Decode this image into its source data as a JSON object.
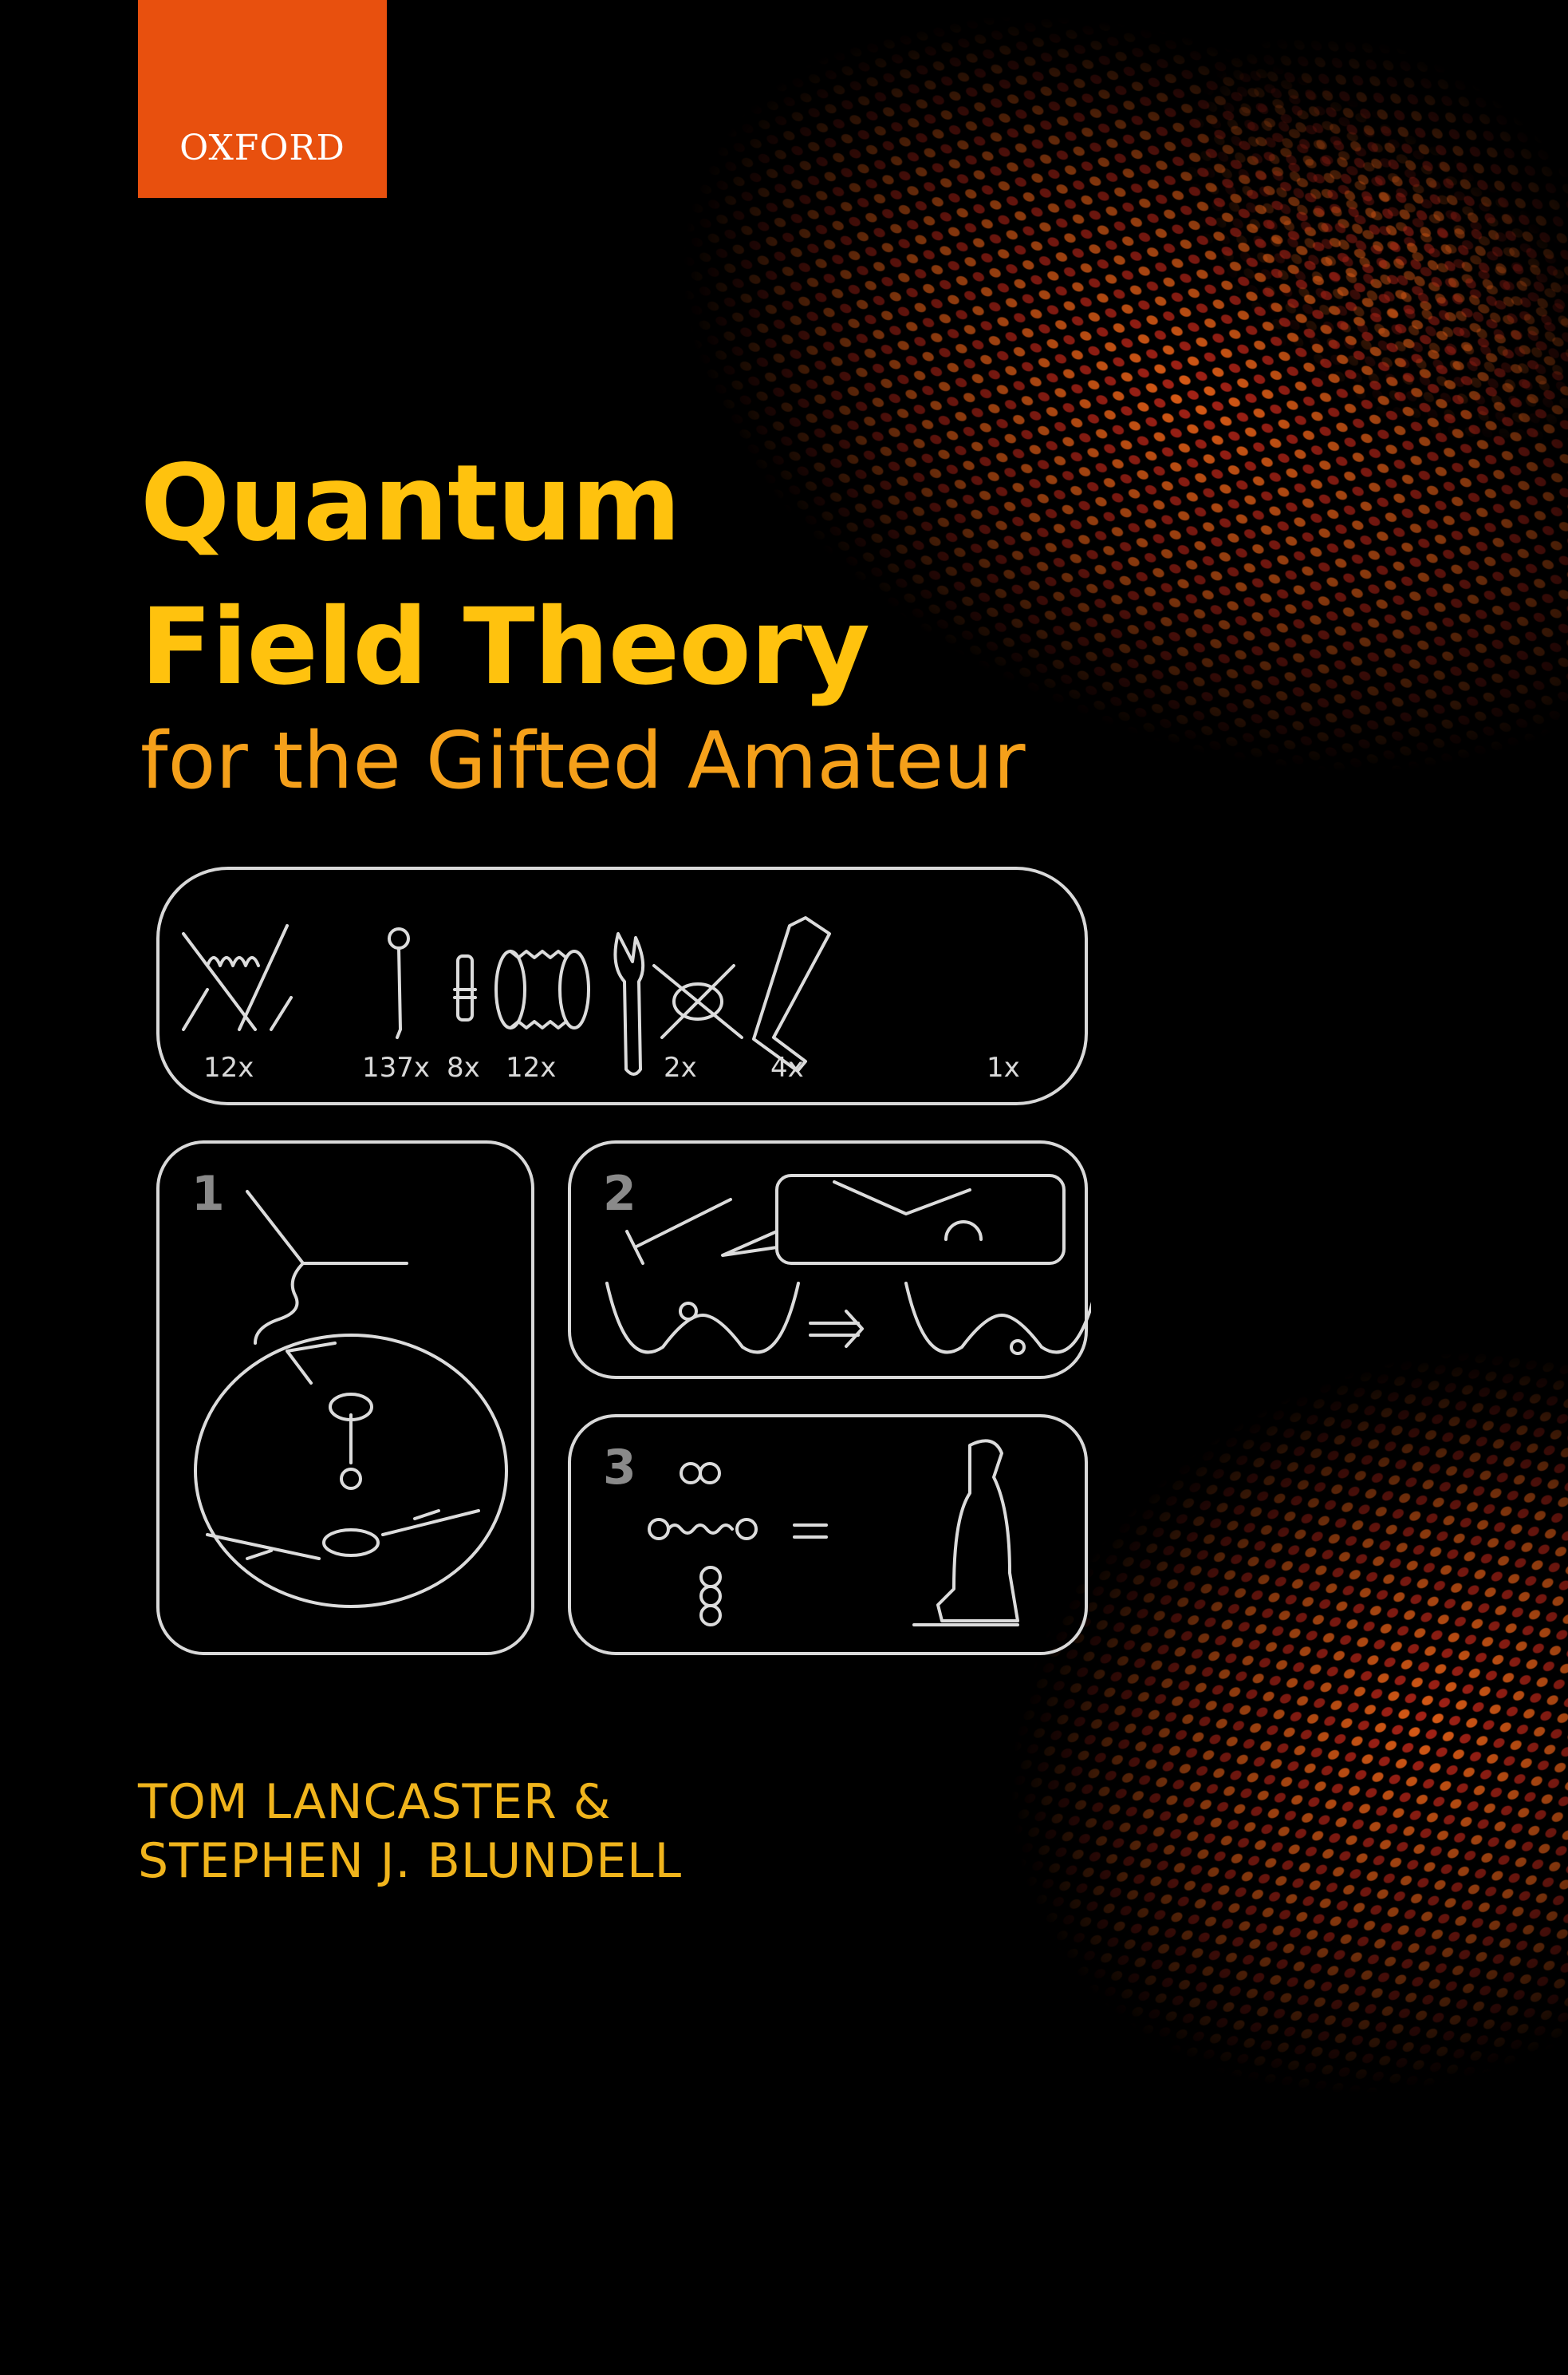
{
  "publisher": {
    "logo_text": "OXFORD",
    "color": "#e8500e"
  },
  "title": {
    "line1": "Quantum",
    "line2": "Field Theory",
    "subtitle": "for the Gifted Amateur",
    "title_color": "#ffc20e",
    "subtitle_color": "#f5a01a"
  },
  "parts_panel": {
    "items": [
      {
        "icon": "feynman-gluon-exchange-icon",
        "quantity": "12x"
      },
      {
        "icon": "nail-icon",
        "quantity": "137x"
      },
      {
        "icon": "dowel-icon",
        "quantity": "8x"
      },
      {
        "icon": "loop-cylinder-icon",
        "quantity": "12x"
      },
      {
        "icon": "wrench-icon",
        "quantity": "2x"
      },
      {
        "icon": "feynman-loop-icon",
        "quantity": "4x"
      },
      {
        "icon": "allen-key-icon",
        "quantity": "1x"
      }
    ]
  },
  "steps": [
    {
      "number": "1",
      "icon": "vertex-assembly-icon"
    },
    {
      "number": "2",
      "icon": "hammer-potential-icon"
    },
    {
      "number": "3",
      "icon": "vacuum-cleaner-icon"
    }
  ],
  "authors": {
    "line1": "TOM LANCASTER &",
    "line2": "STEPHEN J. BLUNDELL",
    "color": "#f0b41c"
  }
}
